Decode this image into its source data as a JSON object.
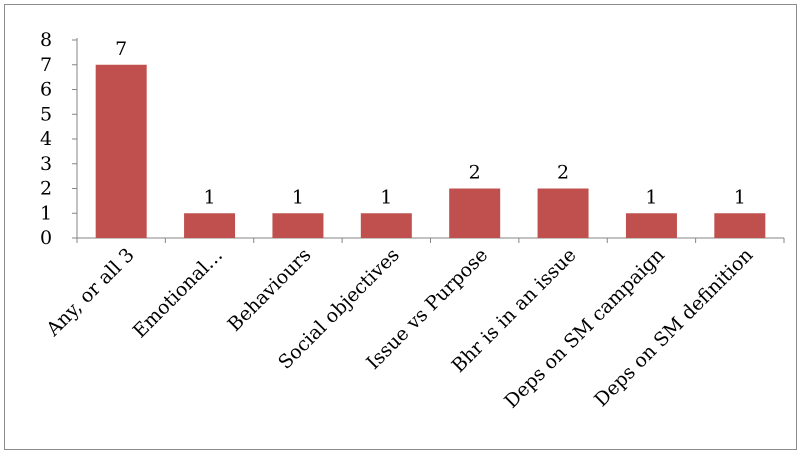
{
  "chart_data": {
    "type": "bar",
    "categories": [
      "Any, or all 3",
      "Emotional…",
      "Behaviours",
      "Social objectives",
      "Issue vs Purpose",
      "Bhr is in an issue",
      "Deps on SM campaign",
      "Deps on SM definition"
    ],
    "values": [
      7,
      1,
      1,
      1,
      2,
      2,
      1,
      1
    ],
    "data_labels": [
      "7",
      "1",
      "1",
      "1",
      "2",
      "2",
      "1",
      "1"
    ],
    "title": "",
    "xlabel": "",
    "ylabel": "",
    "ylim": [
      0,
      8
    ],
    "yticks": [
      "0",
      "1",
      "2",
      "3",
      "4",
      "5",
      "6",
      "7",
      "8"
    ],
    "grid": false,
    "legend": "none",
    "bar_color": "#c0504d"
  }
}
